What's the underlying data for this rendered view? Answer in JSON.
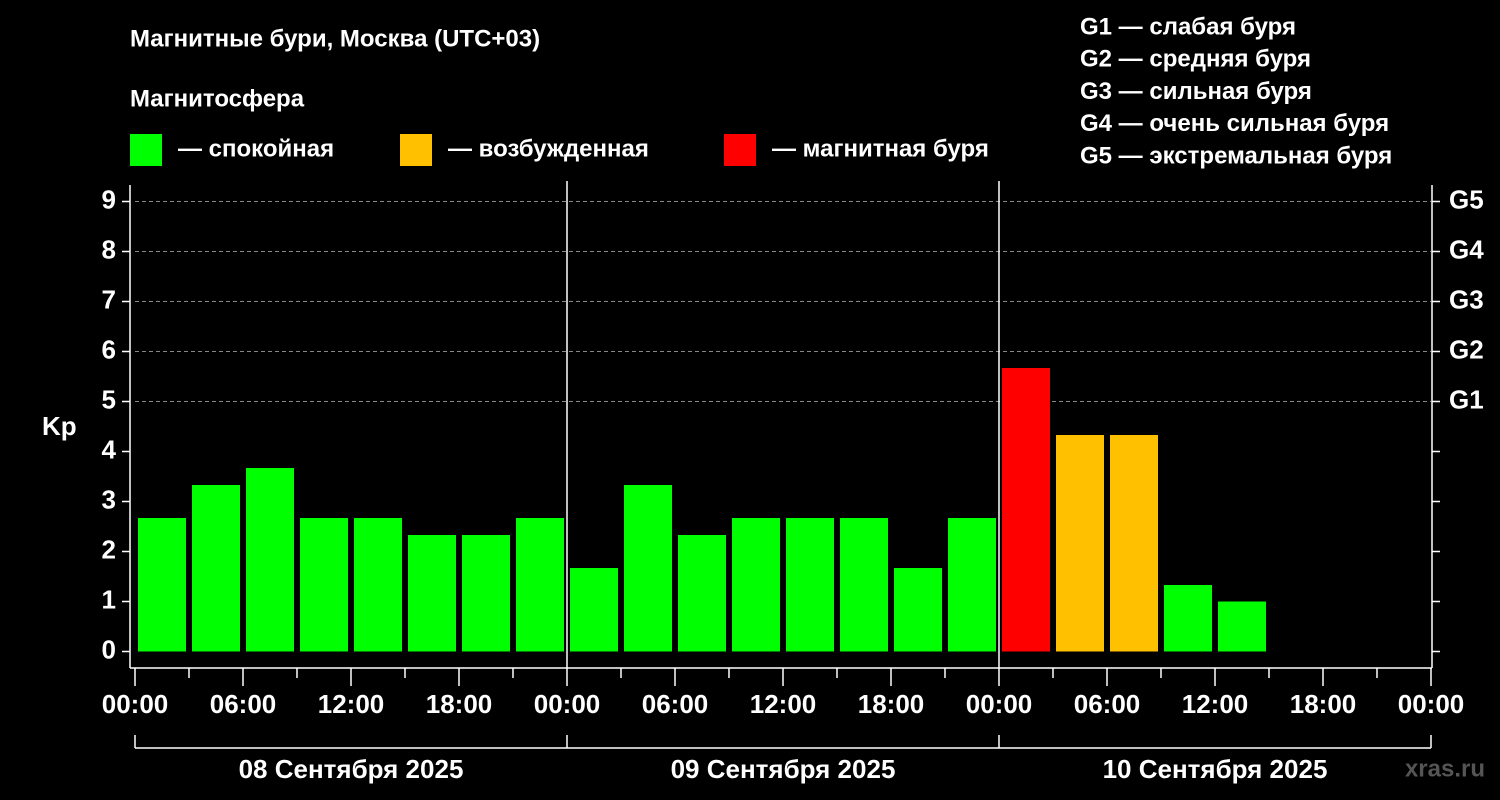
{
  "chart_data": {
    "type": "bar",
    "title": "Магнитные бури, Москва (UTC+03)",
    "legend_title": "Магнитосфера",
    "legend": [
      {
        "name": "— спокойная",
        "color": "#00ff00"
      },
      {
        "name": "— возбужденная",
        "color": "#ffc000"
      },
      {
        "name": "— магнитная буря",
        "color": "#ff0000"
      }
    ],
    "scale_legend": [
      "G1 — слабая буря",
      "G2 — средняя буря",
      "G3 — сильная буря",
      "G4 — очень сильная буря",
      "G5 — экстремальная буря"
    ],
    "ylabel": "Kp",
    "values": [
      2.67,
      3.33,
      3.67,
      2.67,
      2.67,
      2.33,
      2.33,
      2.67,
      1.67,
      3.33,
      2.33,
      2.67,
      2.67,
      2.67,
      1.67,
      2.67,
      5.67,
      4.33,
      4.33,
      1.33,
      1.0,
      null,
      null,
      null
    ],
    "colors": [
      "#00ff00",
      "#00ff00",
      "#00ff00",
      "#00ff00",
      "#00ff00",
      "#00ff00",
      "#00ff00",
      "#00ff00",
      "#00ff00",
      "#00ff00",
      "#00ff00",
      "#00ff00",
      "#00ff00",
      "#00ff00",
      "#00ff00",
      "#00ff00",
      "#ff0000",
      "#ffc000",
      "#ffc000",
      "#00ff00",
      "#00ff00",
      null,
      null,
      null
    ],
    "xtick_labels": [
      "00:00",
      "06:00",
      "12:00",
      "18:00",
      "00:00",
      "06:00",
      "12:00",
      "18:00",
      "00:00",
      "06:00",
      "12:00",
      "18:00",
      "00:00"
    ],
    "days": [
      "08 Сентября 2025",
      "09 Сентября 2025",
      "10 Сентября 2025"
    ],
    "ylim": [
      -0.33,
      9.33
    ],
    "yticks": [
      0,
      1,
      2,
      3,
      4,
      5,
      6,
      7,
      8,
      9
    ],
    "y2ticks": [
      {
        "value": 5,
        "label": "G1"
      },
      {
        "value": 6,
        "label": "G2"
      },
      {
        "value": 7,
        "label": "G3"
      },
      {
        "value": 8,
        "label": "G4"
      },
      {
        "value": 9,
        "label": "G5"
      }
    ],
    "grid": true,
    "watermark": "xras.ru"
  }
}
